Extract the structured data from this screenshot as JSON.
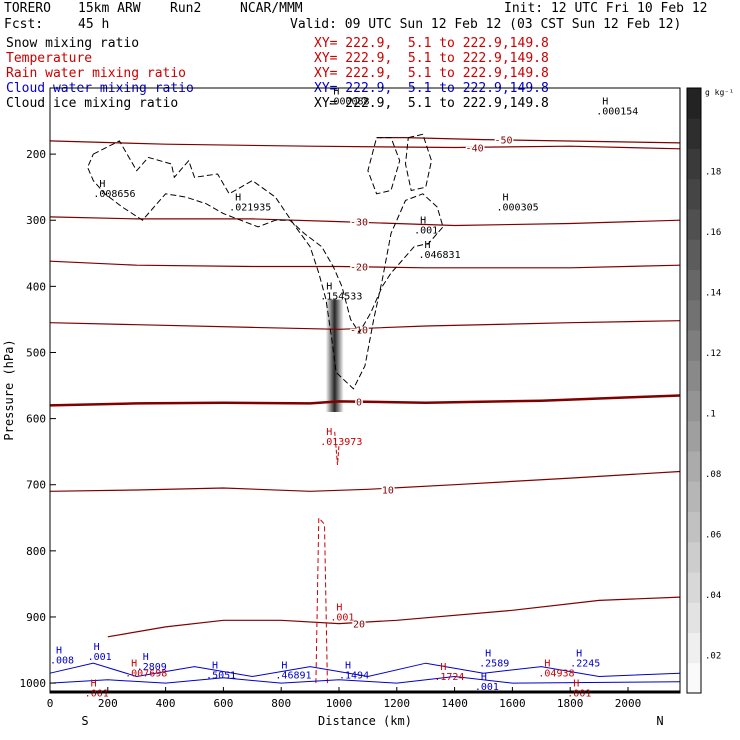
{
  "header": {
    "model": "TORERO",
    "resolution": "15km ARW",
    "run": "Run2",
    "org": "NCAR/MMM",
    "init": "Init: 12 UTC Fri 10 Feb 12",
    "fcst_label": "Fcst:",
    "fcst_value": "45 h",
    "valid": "Valid: 09 UTC Sun 12 Feb 12 (03 CST Sun 12 Feb 12)"
  },
  "fields": [
    {
      "name": "Snow mixing ratio",
      "xy": "XY= 222.9,  5.1 to 222.9,149.8",
      "color": "#000000"
    },
    {
      "name": "Temperature",
      "xy": "XY= 222.9,  5.1 to 222.9,149.8",
      "color": "#cc0000"
    },
    {
      "name": "Rain water mixing ratio",
      "xy": "XY= 222.9,  5.1 to 222.9,149.8",
      "color": "#cc0000"
    },
    {
      "name": "Cloud water mixing ratio",
      "xy": "XY= 222.9,  5.1 to 222.9,149.8",
      "color": "#0000cc"
    },
    {
      "name": "Cloud ice mixing ratio",
      "xy": "XY= 222.9,  5.1 to 222.9,149.8",
      "color": "#000000"
    }
  ],
  "chart_data": {
    "type": "cross-section",
    "xlabel": "Distance (km)",
    "ylabel": "Pressure (hPa)",
    "xlim": [
      0,
      2180
    ],
    "ylim": [
      1015,
      100
    ],
    "x_ticks": [
      0,
      200,
      400,
      600,
      800,
      1000,
      1200,
      1400,
      1600,
      1800,
      2000
    ],
    "y_ticks": [
      200,
      300,
      400,
      500,
      600,
      700,
      800,
      900,
      1000
    ],
    "start_label": "S",
    "end_label": "N",
    "colorbar": {
      "unit": "g kg⁻¹",
      "ticks": [
        ".02",
        ".04",
        ".06",
        ".08",
        ".1",
        ".12",
        ".14",
        ".16",
        ".18"
      ]
    },
    "temperature_isotherms": [
      {
        "label": "-50",
        "pts": [
          [
            1130,
            175
          ],
          [
            1230,
            175
          ],
          [
            1500,
            178
          ],
          [
            2180,
            183
          ]
        ]
      },
      {
        "label": "-40",
        "pts": [
          [
            0,
            180
          ],
          [
            400,
            185
          ],
          [
            900,
            188
          ],
          [
            1400,
            190
          ],
          [
            1800,
            188
          ],
          [
            2180,
            192
          ]
        ]
      },
      {
        "label": "-30",
        "pts": [
          [
            0,
            295
          ],
          [
            300,
            298
          ],
          [
            700,
            298
          ],
          [
            1000,
            302
          ],
          [
            1400,
            308
          ],
          [
            1800,
            305
          ],
          [
            2180,
            300
          ]
        ]
      },
      {
        "label": "-20",
        "pts": [
          [
            0,
            362
          ],
          [
            300,
            368
          ],
          [
            700,
            370
          ],
          [
            1000,
            370
          ],
          [
            1300,
            372
          ],
          [
            1800,
            372
          ],
          [
            2180,
            368
          ]
        ]
      },
      {
        "label": "-10",
        "pts": [
          [
            0,
            455
          ],
          [
            300,
            458
          ],
          [
            700,
            462
          ],
          [
            1000,
            465
          ],
          [
            1300,
            460
          ],
          [
            1800,
            455
          ],
          [
            2180,
            452
          ]
        ]
      },
      {
        "label": "0",
        "pts": [
          [
            0,
            580
          ],
          [
            300,
            577
          ],
          [
            600,
            576
          ],
          [
            900,
            577
          ],
          [
            1000,
            574
          ],
          [
            1300,
            576
          ],
          [
            1700,
            573
          ],
          [
            2000,
            568
          ],
          [
            2180,
            565
          ]
        ]
      },
      {
        "label": "10",
        "pts": [
          [
            0,
            710
          ],
          [
            300,
            708
          ],
          [
            600,
            705
          ],
          [
            900,
            710
          ],
          [
            1100,
            707
          ],
          [
            1400,
            700
          ],
          [
            1800,
            690
          ],
          [
            2180,
            680
          ]
        ]
      },
      {
        "label": "20",
        "pts": [
          [
            200,
            930
          ],
          [
            400,
            915
          ],
          [
            600,
            905
          ],
          [
            800,
            905
          ],
          [
            1000,
            910
          ],
          [
            1200,
            905
          ],
          [
            1600,
            890
          ],
          [
            1900,
            875
          ],
          [
            2180,
            870
          ]
        ]
      }
    ],
    "maxima": [
      {
        "value": ".008656",
        "x": 150,
        "p": 250,
        "series": "Cloud ice mixing ratio"
      },
      {
        "value": ".021935",
        "x": 620,
        "p": 270,
        "series": "Cloud ice mixing ratio"
      },
      {
        "value": ".000305",
        "x": 1545,
        "p": 270,
        "series": "Cloud ice mixing ratio"
      },
      {
        "value": ".046831",
        "x": 1275,
        "p": 342,
        "series": "Cloud ice mixing ratio"
      },
      {
        "value": ".154533",
        "x": 935,
        "p": 405,
        "series": "Cloud ice mixing ratio"
      },
      {
        "value": ".000154",
        "x": 1890,
        "p": 125,
        "series": "Cloud ice mixing ratio"
      },
      {
        "value": ".013973",
        "x": 935,
        "p": 625,
        "series": "Rain water mixing ratio"
      },
      {
        "value": ".007698",
        "x": 260,
        "p": 975,
        "series": "Rain water mixing ratio"
      },
      {
        "value": ".001",
        "x": 970,
        "p": 890,
        "series": "Rain water mixing ratio"
      },
      {
        "value": ".001",
        "x": 1260,
        "p": 305,
        "series": "Cloud ice mixing ratio"
      },
      {
        "value": ".04938",
        "x": 1690,
        "p": 975,
        "series": "Rain water mixing ratio"
      },
      {
        "value": ".1724",
        "x": 1330,
        "p": 980,
        "series": "Rain water mixing ratio"
      },
      {
        "value": ".2809",
        "x": 300,
        "p": 965,
        "series": "Cloud water mixing ratio"
      },
      {
        "value": ".5051",
        "x": 540,
        "p": 978,
        "series": "Cloud water mixing ratio"
      },
      {
        "value": ".46891",
        "x": 780,
        "p": 978,
        "series": "Cloud water mixing ratio"
      },
      {
        "value": ".1494",
        "x": 1000,
        "p": 978,
        "series": "Cloud water mixing ratio"
      },
      {
        "value": ".2589",
        "x": 1485,
        "p": 960,
        "series": "Cloud water mixing ratio"
      },
      {
        "value": ".2245",
        "x": 1800,
        "p": 960,
        "series": "Cloud water mixing ratio"
      },
      {
        "value": ".001",
        "x": 1470,
        "p": 995,
        "series": "Cloud water mixing ratio"
      },
      {
        "value": ".001",
        "x": 130,
        "p": 950,
        "series": "Cloud water mixing ratio"
      },
      {
        "value": ".001",
        "x": 1790,
        "p": 1005,
        "series": "Rain water mixing ratio"
      },
      {
        "value": ".001",
        "x": 120,
        "p": 1005,
        "series": "Rain water mixing ratio"
      },
      {
        "value": ".008",
        "x": 0,
        "p": 955,
        "series": "Cloud water mixing ratio"
      },
      {
        "value": ".000088",
        "x": 960,
        "p": 110,
        "series": "Cloud ice mixing ratio"
      }
    ],
    "snow_column": {
      "x": 985,
      "p_top": 420,
      "p_bottom": 590,
      "max_value": 0.18
    },
    "ice_cloud_outline": [
      [
        150,
        200
      ],
      [
        240,
        180
      ],
      [
        300,
        225
      ],
      [
        340,
        205
      ],
      [
        420,
        215
      ],
      [
        430,
        235
      ],
      [
        480,
        210
      ],
      [
        500,
        235
      ],
      [
        580,
        230
      ],
      [
        620,
        260
      ],
      [
        700,
        240
      ],
      [
        780,
        265
      ],
      [
        850,
        310
      ],
      [
        900,
        340
      ],
      [
        930,
        380
      ],
      [
        955,
        420
      ],
      [
        975,
        480
      ],
      [
        990,
        530
      ],
      [
        1050,
        555
      ],
      [
        1090,
        520
      ],
      [
        1120,
        450
      ],
      [
        1150,
        390
      ],
      [
        1180,
        320
      ],
      [
        1230,
        270
      ],
      [
        1290,
        260
      ],
      [
        1340,
        280
      ],
      [
        1360,
        310
      ],
      [
        1310,
        335
      ],
      [
        1260,
        340
      ],
      [
        1220,
        360
      ],
      [
        1180,
        380
      ],
      [
        1150,
        400
      ],
      [
        1110,
        440
      ],
      [
        1070,
        470
      ],
      [
        1040,
        450
      ],
      [
        1010,
        400
      ],
      [
        980,
        370
      ],
      [
        940,
        340
      ],
      [
        880,
        320
      ],
      [
        830,
        300
      ],
      [
        780,
        300
      ],
      [
        720,
        310
      ],
      [
        660,
        300
      ],
      [
        600,
        290
      ],
      [
        540,
        275
      ],
      [
        470,
        265
      ],
      [
        400,
        260
      ],
      [
        320,
        300
      ],
      [
        250,
        280
      ],
      [
        190,
        260
      ],
      [
        150,
        240
      ],
      [
        130,
        220
      ],
      [
        150,
        200
      ]
    ],
    "ice_cloud_outline_2": [
      [
        1130,
        175
      ],
      [
        1180,
        175
      ],
      [
        1210,
        210
      ],
      [
        1180,
        255
      ],
      [
        1130,
        260
      ],
      [
        1100,
        225
      ],
      [
        1130,
        175
      ]
    ],
    "ice_cloud_outline_3": [
      [
        1240,
        175
      ],
      [
        1290,
        170
      ],
      [
        1320,
        210
      ],
      [
        1300,
        250
      ],
      [
        1250,
        255
      ],
      [
        1230,
        215
      ],
      [
        1240,
        175
      ]
    ]
  }
}
